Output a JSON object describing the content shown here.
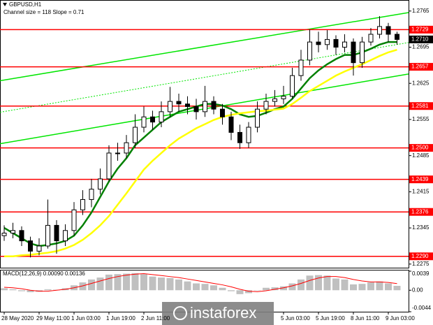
{
  "chart_data": [
    {
      "type": "candlestick",
      "title": "GBPUSD,H1",
      "subtitle": "Channel size = 118 Slope = 0.71",
      "categories": [
        "28 May 2020",
        null,
        null,
        null,
        "29 May 11:00",
        null,
        null,
        null,
        "1 Jun 03:00",
        null,
        null,
        null,
        "1 Jun 19:00",
        null,
        null,
        null,
        "2 Jun 11:00",
        null,
        null,
        null,
        null,
        null,
        null,
        null,
        null,
        null,
        null,
        null,
        null,
        null,
        null,
        null,
        "5 Jun 03:00",
        null,
        null,
        null,
        "5 Jun 19:00",
        null,
        null,
        null,
        "8 Jun 11:00",
        null,
        null,
        null,
        "9 Jun 03:00",
        null
      ],
      "open": [
        1.233,
        1.2335,
        1.234,
        1.232,
        1.23,
        1.231,
        1.235,
        1.232,
        1.234,
        1.238,
        1.24,
        1.242,
        1.244,
        1.249,
        1.249,
        1.251,
        1.254,
        1.256,
        1.255,
        1.257,
        1.259,
        1.2585,
        1.258,
        1.257,
        1.259,
        1.2575,
        1.256,
        1.253,
        1.251,
        1.254,
        1.2575,
        1.259,
        1.2595,
        1.26,
        1.264,
        1.267,
        1.2705,
        1.27,
        1.271,
        1.2695,
        1.2705,
        1.2665,
        1.2705,
        1.272,
        1.2735,
        1.272
      ],
      "high": [
        1.235,
        1.2355,
        1.2348,
        1.2328,
        1.2325,
        1.24,
        1.236,
        1.2352,
        1.2395,
        1.2418,
        1.244,
        1.246,
        1.2505,
        1.251,
        1.2525,
        1.2565,
        1.258,
        1.2572,
        1.259,
        1.2618,
        1.2605,
        1.26,
        1.2595,
        1.262,
        1.26,
        1.2585,
        1.257,
        1.2545,
        1.255,
        1.259,
        1.2605,
        1.2612,
        1.262,
        1.2655,
        1.269,
        1.2729,
        1.2725,
        1.2728,
        1.2718,
        1.272,
        1.2712,
        1.2715,
        1.2732,
        1.2755,
        1.2742,
        1.2725
      ],
      "low": [
        1.232,
        1.2325,
        1.231,
        1.2288,
        1.2292,
        1.2305,
        1.2295,
        1.231,
        1.233,
        1.237,
        1.2385,
        1.241,
        1.2435,
        1.2475,
        1.248,
        1.25,
        1.253,
        1.2535,
        1.254,
        1.256,
        1.257,
        1.2565,
        1.2555,
        1.256,
        1.2565,
        1.2545,
        1.2515,
        1.2498,
        1.25,
        1.253,
        1.2565,
        1.258,
        1.2585,
        1.2595,
        1.263,
        1.266,
        1.2685,
        1.269,
        1.268,
        1.2685,
        1.264,
        1.2655,
        1.2698,
        1.2712,
        1.2705,
        1.27
      ],
      "close": [
        1.2335,
        1.234,
        1.232,
        1.23,
        1.231,
        1.235,
        1.232,
        1.234,
        1.238,
        1.24,
        1.242,
        1.244,
        1.249,
        1.249,
        1.251,
        1.254,
        1.256,
        1.255,
        1.257,
        1.259,
        1.2585,
        1.258,
        1.257,
        1.259,
        1.2575,
        1.256,
        1.253,
        1.251,
        1.254,
        1.2575,
        1.259,
        1.2595,
        1.26,
        1.264,
        1.267,
        1.2705,
        1.27,
        1.271,
        1.2695,
        1.2705,
        1.2665,
        1.2705,
        1.272,
        1.2735,
        1.272,
        1.271
      ],
      "series": [
        {
          "color": "#008000",
          "values": [
            1.2345,
            1.2335,
            1.2325,
            1.2315,
            1.231,
            1.2312,
            1.2315,
            1.232,
            1.233,
            1.235,
            1.2375,
            1.2405,
            1.2435,
            1.246,
            1.248,
            1.2505,
            1.252,
            1.2535,
            1.255,
            1.256,
            1.257,
            1.2575,
            1.258,
            1.2585,
            1.2585,
            1.2582,
            1.2575,
            1.2565,
            1.256,
            1.2562,
            1.2568,
            1.2575,
            1.258,
            1.2595,
            1.2615,
            1.2635,
            1.265,
            1.2662,
            1.2672,
            1.268,
            1.268,
            1.2685,
            1.2692,
            1.27,
            1.2705,
            1.2705
          ]
        },
        {
          "color": "#ffff00",
          "values": [
            1.229,
            1.229,
            1.2292,
            1.2293,
            1.2295,
            1.2297,
            1.23,
            1.2305,
            1.2312,
            1.2322,
            1.2335,
            1.235,
            1.2368,
            1.239,
            1.2412,
            1.2435,
            1.2458,
            1.2475,
            1.249,
            1.2505,
            1.2518,
            1.2528,
            1.2538,
            1.2546,
            1.2554,
            1.256,
            1.2564,
            1.2567,
            1.2569,
            1.2571,
            1.2572,
            1.2574,
            1.2576,
            1.2585,
            1.2597,
            1.261,
            1.262,
            1.263,
            1.264,
            1.2648,
            1.2655,
            1.2662,
            1.267,
            1.2678,
            1.2685,
            1.269
          ]
        }
      ],
      "channel": {
        "color": "#00e600",
        "upper": [
          1.263,
          1.2762
        ],
        "middle": [
          1.2569,
          1.2704
        ],
        "lower": [
          1.2508,
          1.2643
        ]
      },
      "levels": [
        1.2729,
        1.2657,
        1.2581,
        {
          "value": 1.25,
          "label": "1.2500"
        },
        1.2439,
        1.2376,
        {
          "value": 1.229,
          "label": "1.2290"
        }
      ],
      "level_color": "#ff0000",
      "current_price": {
        "value": 1.271,
        "label": "1.2710"
      },
      "ylim": [
        1.2268,
        1.2785
      ],
      "yticks": [
        1.2765,
        1.2695,
        1.2625,
        1.2555,
        1.2485,
        1.2415,
        1.2345,
        1.2275
      ]
    },
    {
      "type": "macd",
      "title": "MACD(12,26,9) 0.00090 0.00136",
      "values": [
        0.0004,
        0.0002,
        -0.0002,
        -0.0004,
        -0.0003,
        0.0002,
        0.0001,
        0.0004,
        0.001,
        0.0016,
        0.0022,
        0.0026,
        0.0032,
        0.0033,
        0.0034,
        0.0035,
        0.0033,
        0.0028,
        0.0026,
        0.0025,
        0.0022,
        0.0018,
        0.0014,
        0.0013,
        0.001,
        0.0005,
        -0.0002,
        -0.0008,
        -0.0006,
        0.0,
        0.0005,
        0.0006,
        0.0008,
        0.0014,
        0.0022,
        0.003,
        0.0031,
        0.003,
        0.0024,
        0.0022,
        0.0012,
        0.0013,
        0.0016,
        0.0018,
        0.0014,
        0.0009
      ],
      "color": "#c0c0c0",
      "series": [
        {
          "color": "#ff0000",
          "values": [
            0.0006,
            0.0005,
            0.0003,
            0.0,
            -0.0002,
            -0.0002,
            0.0,
            0.0002,
            0.0005,
            0.0009,
            0.0014,
            0.0019,
            0.0024,
            0.0028,
            0.0031,
            0.0033,
            0.0034,
            0.0032,
            0.003,
            0.0028,
            0.0026,
            0.0023,
            0.002,
            0.0017,
            0.0014,
            0.0011,
            0.0007,
            0.0002,
            -0.0002,
            -0.0003,
            -0.0001,
            0.0002,
            0.0005,
            0.0009,
            0.0014,
            0.002,
            0.0025,
            0.0028,
            0.0028,
            0.0026,
            0.0022,
            0.0019,
            0.0017,
            0.0017,
            0.0016,
            0.00136
          ]
        }
      ],
      "ylim": [
        -0.0044,
        0.0039
      ],
      "yticks": [
        0.0039,
        {
          "value": 0,
          "label": "0.00"
        },
        -0.0044
      ]
    }
  ],
  "watermark": "instaforex"
}
